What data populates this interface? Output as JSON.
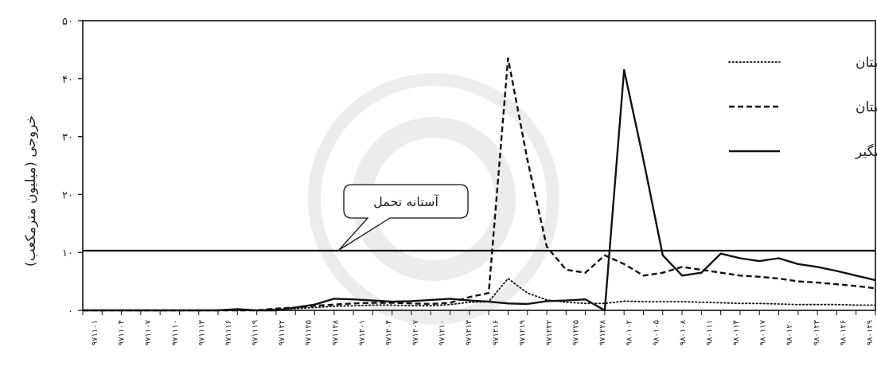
{
  "chart_data": {
    "type": "line",
    "ylabel": "خروجی (میلیون مترمکعب)",
    "ylim": [
      0,
      50
    ],
    "y_ticks": [
      {
        "v": 0,
        "label": "۰"
      },
      {
        "v": 10,
        "label": "۱۰"
      },
      {
        "v": 20,
        "label": "۲۰"
      },
      {
        "v": 30,
        "label": "۳۰"
      },
      {
        "v": 40,
        "label": "۴۰"
      },
      {
        "v": 50,
        "label": "۵۰"
      }
    ],
    "x_count": 42,
    "x_labels": [
      "۹۷۱۱۰۱",
      "۹۷۱۱۰۴",
      "۹۷۱۱۰۷",
      "۹۷۱۱۱۰",
      "۹۷۱۱۱۳",
      "۹۷۱۱۱۶",
      "۹۷۱۱۱۹",
      "۹۷۱۱۲۲",
      "۹۷۱۱۲۵",
      "۹۷۱۱۲۸",
      "۹۷۱۲۰۱",
      "۹۷۱۲۰۴",
      "۹۷۱۲۰۷",
      "۹۷۱۲۱۰",
      "۹۷۱۲۱۳",
      "۹۷۱۲۱۶",
      "۹۷۱۲۱۹",
      "۹۷۱۲۲۲",
      "۹۷۱۲۲۵",
      "۹۷۱۲۲۸",
      "۹۸۰۱۰۲",
      "۹۸۰۱۰۵",
      "۹۸۰۱۰۸",
      "۹۸۰۱۱۱",
      "۹۸۰۱۱۴",
      "۹۸۰۱۱۷",
      "۹۸۰۱۲۰",
      "۹۸۰۱۲۳",
      "۹۸۰۱۲۶",
      "۹۸۰۱۲۹"
    ],
    "threshold": {
      "value": 10.3,
      "label": "آستانه تحمل"
    },
    "legend_position": "top-right",
    "series": [
      {
        "name": "بوستان",
        "style": "dotted",
        "values": [
          0,
          0,
          0,
          0,
          0,
          0,
          0,
          0,
          0,
          0,
          0.2,
          0.3,
          0.5,
          0.7,
          0.8,
          0.9,
          0.9,
          0.8,
          0.8,
          1.0,
          1.4,
          1.5,
          5.5,
          3.0,
          1.8,
          1.4,
          1.2,
          1.2,
          1.6,
          1.5,
          1.5,
          1.5,
          1.4,
          1.3,
          1.2,
          1.2,
          1.1,
          1.0,
          1.0,
          1.0,
          0.9,
          0.9
        ]
      },
      {
        "name": "گلستان",
        "style": "dashed",
        "values": [
          0,
          0,
          0,
          0,
          0,
          0,
          0,
          0,
          0,
          0,
          0.3,
          0.5,
          0.8,
          1.0,
          1.2,
          1.3,
          1.3,
          1.2,
          1.1,
          1.3,
          2.3,
          3.0,
          43.5,
          26.0,
          11.0,
          7.0,
          6.5,
          9.5,
          8.0,
          6.0,
          6.5,
          7.5,
          7.0,
          6.5,
          6.0,
          5.8,
          5.5,
          5.0,
          4.8,
          4.5,
          4.2,
          3.8
        ]
      },
      {
        "name": "وشمگیر",
        "style": "solid",
        "values": [
          0,
          0,
          0,
          0,
          0,
          0,
          0,
          0,
          0.2,
          0,
          0,
          0.5,
          1.0,
          2.0,
          1.9,
          1.7,
          1.5,
          1.6,
          1.8,
          2.0,
          1.7,
          1.5,
          1.2,
          1.1,
          1.6,
          1.7,
          1.9,
          0,
          41.5,
          26.0,
          9.5,
          6.0,
          6.5,
          9.8,
          9.0,
          8.5,
          9.0,
          8.0,
          7.5,
          6.8,
          6.0,
          5.2
        ]
      }
    ]
  }
}
